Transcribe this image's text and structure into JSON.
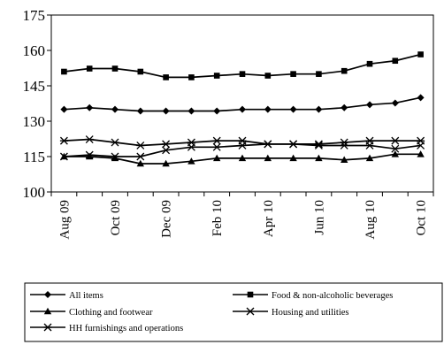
{
  "chart_data": {
    "type": "line",
    "title": "",
    "xlabel": "",
    "ylabel": "",
    "ylim": [
      100,
      175
    ],
    "yticks": [
      100,
      115,
      130,
      145,
      160,
      175
    ],
    "grid": false,
    "legend_placement": "bottom",
    "categories": [
      "Aug 09",
      "Sep 09",
      "Oct 09",
      "Nov 09",
      "Dec 09",
      "Jan 10",
      "Feb 10",
      "Mar 10",
      "Apr 10",
      "May 10",
      "Jun 10",
      "Jul 10",
      "Aug 10",
      "Sep 10",
      "Oct 10"
    ],
    "xtick_labels": [
      "Aug 09",
      "Oct 09",
      "Dec 09",
      "Feb 10",
      "Apr 10",
      "Jun 10",
      "Aug 10",
      "Oct 10"
    ],
    "xtick_indices": [
      0,
      2,
      4,
      6,
      8,
      10,
      12,
      14
    ],
    "series": [
      {
        "name": "All items",
        "marker": "diamond",
        "values": [
          135,
          135.7,
          135,
          134.3,
          134.3,
          134.3,
          134.3,
          135,
          135,
          135,
          135,
          135.7,
          137,
          137.7,
          140
        ]
      },
      {
        "name": "Food & non-alcoholic beverages",
        "marker": "square",
        "values": [
          151,
          152.3,
          152.3,
          151,
          148.6,
          148.6,
          149.3,
          150,
          149.3,
          150,
          150,
          151.3,
          154.3,
          155.6,
          158.3
        ]
      },
      {
        "name": "Clothing and footwear",
        "marker": "triangle",
        "values": [
          115,
          115,
          114.3,
          112,
          112,
          113,
          114.3,
          114.3,
          114.3,
          114.3,
          114.3,
          113.6,
          114.3,
          116,
          116
        ]
      },
      {
        "name": "Housing and utilities",
        "marker": "x",
        "values": [
          115,
          115.7,
          115,
          115,
          117.7,
          119,
          119,
          119.7,
          120.3,
          120.3,
          119.7,
          119.7,
          119.7,
          118.3,
          119.7
        ]
      },
      {
        "name": "HH furnishings and operations",
        "marker": "star",
        "values": [
          121.7,
          122.3,
          121,
          119.7,
          120.3,
          121,
          121.7,
          121.7,
          120.3,
          120.3,
          120.3,
          121,
          121.7,
          121.7,
          121.7
        ]
      }
    ],
    "legend": [
      "All items",
      "Food & non-alcoholic beverages",
      "Clothing and footwear",
      "Housing and utilities",
      "HH furnishings and operations"
    ]
  }
}
